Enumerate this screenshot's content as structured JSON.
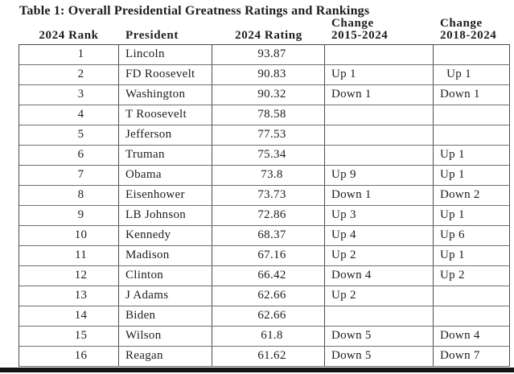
{
  "title": "Table 1: Overall Presidential Greatness Ratings and Rankings",
  "table": {
    "columns": [
      {
        "key": "rank",
        "lines": [
          "2024 Rank"
        ]
      },
      {
        "key": "president",
        "lines": [
          "President"
        ]
      },
      {
        "key": "rating",
        "lines": [
          "2024 Rating"
        ]
      },
      {
        "key": "change15",
        "lines": [
          "Change",
          "2015-2024"
        ]
      },
      {
        "key": "change18",
        "lines": [
          "Change",
          "2018-2024"
        ]
      }
    ],
    "rows": [
      {
        "rank": "1",
        "president": "Lincoln",
        "rating": "93.87",
        "change15": "",
        "change18": ""
      },
      {
        "rank": "2",
        "president": "FD Roosevelt",
        "rating": "90.83",
        "change15": "Up 1",
        "change18": "  Up 1"
      },
      {
        "rank": "3",
        "president": "Washington",
        "rating": "90.32",
        "change15": "Down 1",
        "change18": "Down 1"
      },
      {
        "rank": "4",
        "president": "T Roosevelt",
        "rating": "78.58",
        "change15": "",
        "change18": ""
      },
      {
        "rank": "5",
        "president": "Jefferson",
        "rating": "77.53",
        "change15": "",
        "change18": ""
      },
      {
        "rank": "6",
        "president": "Truman",
        "rating": "75.34",
        "change15": "",
        "change18": "Up 1"
      },
      {
        "rank": "7",
        "president": "Obama",
        "rating": "73.8",
        "change15": "Up 9",
        "change18": "Up 1"
      },
      {
        "rank": "8",
        "president": "Eisenhower",
        "rating": "73.73",
        "change15": "Down 1",
        "change18": "Down 2"
      },
      {
        "rank": "9",
        "president": "LB Johnson",
        "rating": "72.86",
        "change15": "Up 3",
        "change18": "Up 1"
      },
      {
        "rank": "10",
        "president": "Kennedy",
        "rating": "68.37",
        "change15": "Up 4",
        "change18": "Up 6"
      },
      {
        "rank": "11",
        "president": "Madison",
        "rating": "67.16",
        "change15": "Up 2",
        "change18": "Up 1"
      },
      {
        "rank": "12",
        "president": "Clinton",
        "rating": "66.42",
        "change15": "Down 4",
        "change18": "Up 2"
      },
      {
        "rank": "13",
        "president": "J Adams",
        "rating": "62.66",
        "change15": "Up 2",
        "change18": ""
      },
      {
        "rank": "14",
        "president": "Biden",
        "rating": "62.66",
        "change15": "",
        "change18": ""
      },
      {
        "rank": "15",
        "president": "Wilson",
        "rating": "61.8",
        "change15": "Down 5",
        "change18": "Down 4"
      },
      {
        "rank": "16",
        "president": "Reagan",
        "rating": "61.62",
        "change15": "Down 5",
        "change18": "Down 7"
      }
    ]
  }
}
